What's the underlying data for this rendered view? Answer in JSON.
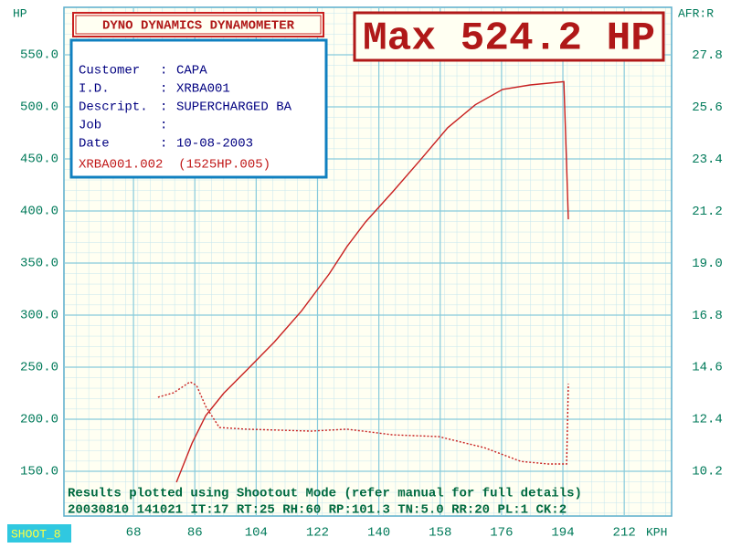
{
  "chart_data": {
    "type": "line",
    "title": "DYNO DYNAMICS DYNAMOMETER",
    "headline": "Max 524.2 HP",
    "ylabel": "HP",
    "y2label": "AFR:R",
    "xlabel": "KPH",
    "xlim": [
      47.6,
      225.9
    ],
    "xticks": [
      68,
      86,
      104,
      122,
      140,
      158,
      176,
      194,
      212
    ],
    "ylim": [
      107,
      595.6
    ],
    "yticks": [
      {
        "value": 150,
        "label": "150.0"
      },
      {
        "value": 200,
        "label": "200.0"
      },
      {
        "value": 250,
        "label": "250.0"
      },
      {
        "value": 300,
        "label": "300.0"
      },
      {
        "value": 350,
        "label": "350.0"
      },
      {
        "value": 400,
        "label": "400.0"
      },
      {
        "value": 450,
        "label": "450.0"
      },
      {
        "value": 500,
        "label": "500.0"
      },
      {
        "value": 550,
        "label": "550.0"
      }
    ],
    "y2lim": [
      8.31,
      29.81
    ],
    "y2ticks": [
      10.2,
      12.4,
      14.6,
      16.8,
      19.0,
      21.2,
      23.4,
      25.6,
      27.8
    ],
    "grid": true,
    "series": [
      {
        "name": "HP",
        "color": "#c82020",
        "style": "solid",
        "x": [
          80.6,
          82.5,
          85.2,
          89.2,
          94.5,
          101.2,
          109.3,
          117.3,
          125.4,
          130.7,
          136.1,
          144.1,
          152.2,
          160.2,
          168.3,
          176.3,
          184.4,
          194.3,
          195.6
        ],
        "values": [
          139.5,
          155,
          177,
          203.5,
          225,
          247,
          274,
          304,
          339.5,
          366,
          389.5,
          418.5,
          449,
          480,
          502,
          516.7,
          521,
          524.2,
          392
        ]
      },
      {
        "name": "AFR",
        "color": "#c82020",
        "style": "dotted",
        "axis": "y2",
        "x": [
          75.2,
          79.8,
          84.6,
          86.5,
          89.2,
          93.2,
          101.2,
          120,
          130.7,
          144.1,
          157.5,
          170.9,
          181.7,
          189.7,
          195.1,
          195.6
        ],
        "values": [
          13.33,
          13.52,
          13.98,
          13.83,
          12.94,
          12.05,
          11.98,
          11.9,
          11.98,
          11.74,
          11.67,
          11.2,
          10.62,
          10.51,
          10.51,
          13.9
        ]
      }
    ],
    "info": {
      "rows": [
        {
          "label": "Customer",
          "sep": ":",
          "value": "CAPA"
        },
        {
          "label": "I.D.",
          "sep": ":",
          "value": "XRBA001"
        },
        {
          "label": "Descript.",
          "sep": ":",
          "value": "SUPERCHARGED BA"
        },
        {
          "label": "Job",
          "sep": ":"
        },
        {
          "label": "Date",
          "sep": ":",
          "value": "10-08-2003"
        }
      ],
      "file": "XRBA001.002  (1525HP.005)"
    },
    "footer": [
      "Results plotted using Shootout Mode (refer manual for full details)",
      "20030810 141021 IT:17 RT:25 RH:60 RP:101.3 TN:5.0 RR:20 PL:1 CK:2"
    ],
    "badge": "SHOOT_8"
  }
}
